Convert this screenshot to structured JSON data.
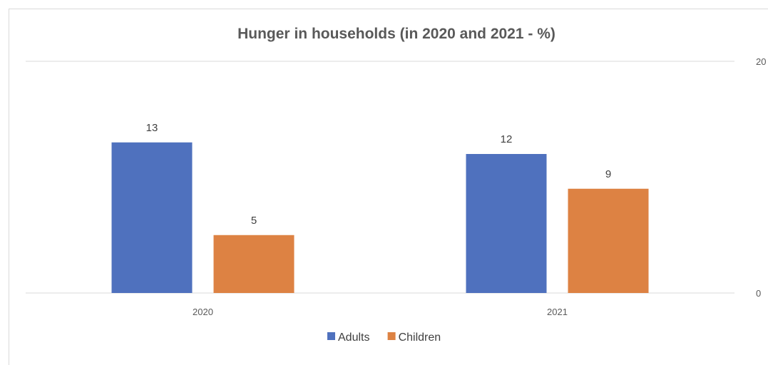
{
  "chart_data": {
    "type": "bar",
    "title": "Hunger in households (in 2020 and 2021 - %)",
    "categories": [
      "2020",
      "2021"
    ],
    "series": [
      {
        "name": "Adults",
        "values": [
          13,
          12
        ],
        "color": "#4f71be"
      },
      {
        "name": "Children",
        "values": [
          5,
          9
        ],
        "color": "#dd8243"
      }
    ],
    "ylim": [
      0,
      20
    ],
    "y_tick_labels": [
      "0",
      "20"
    ],
    "y_axis_side": "right",
    "grid": true,
    "legend_position": "bottom",
    "data_labels": true
  }
}
